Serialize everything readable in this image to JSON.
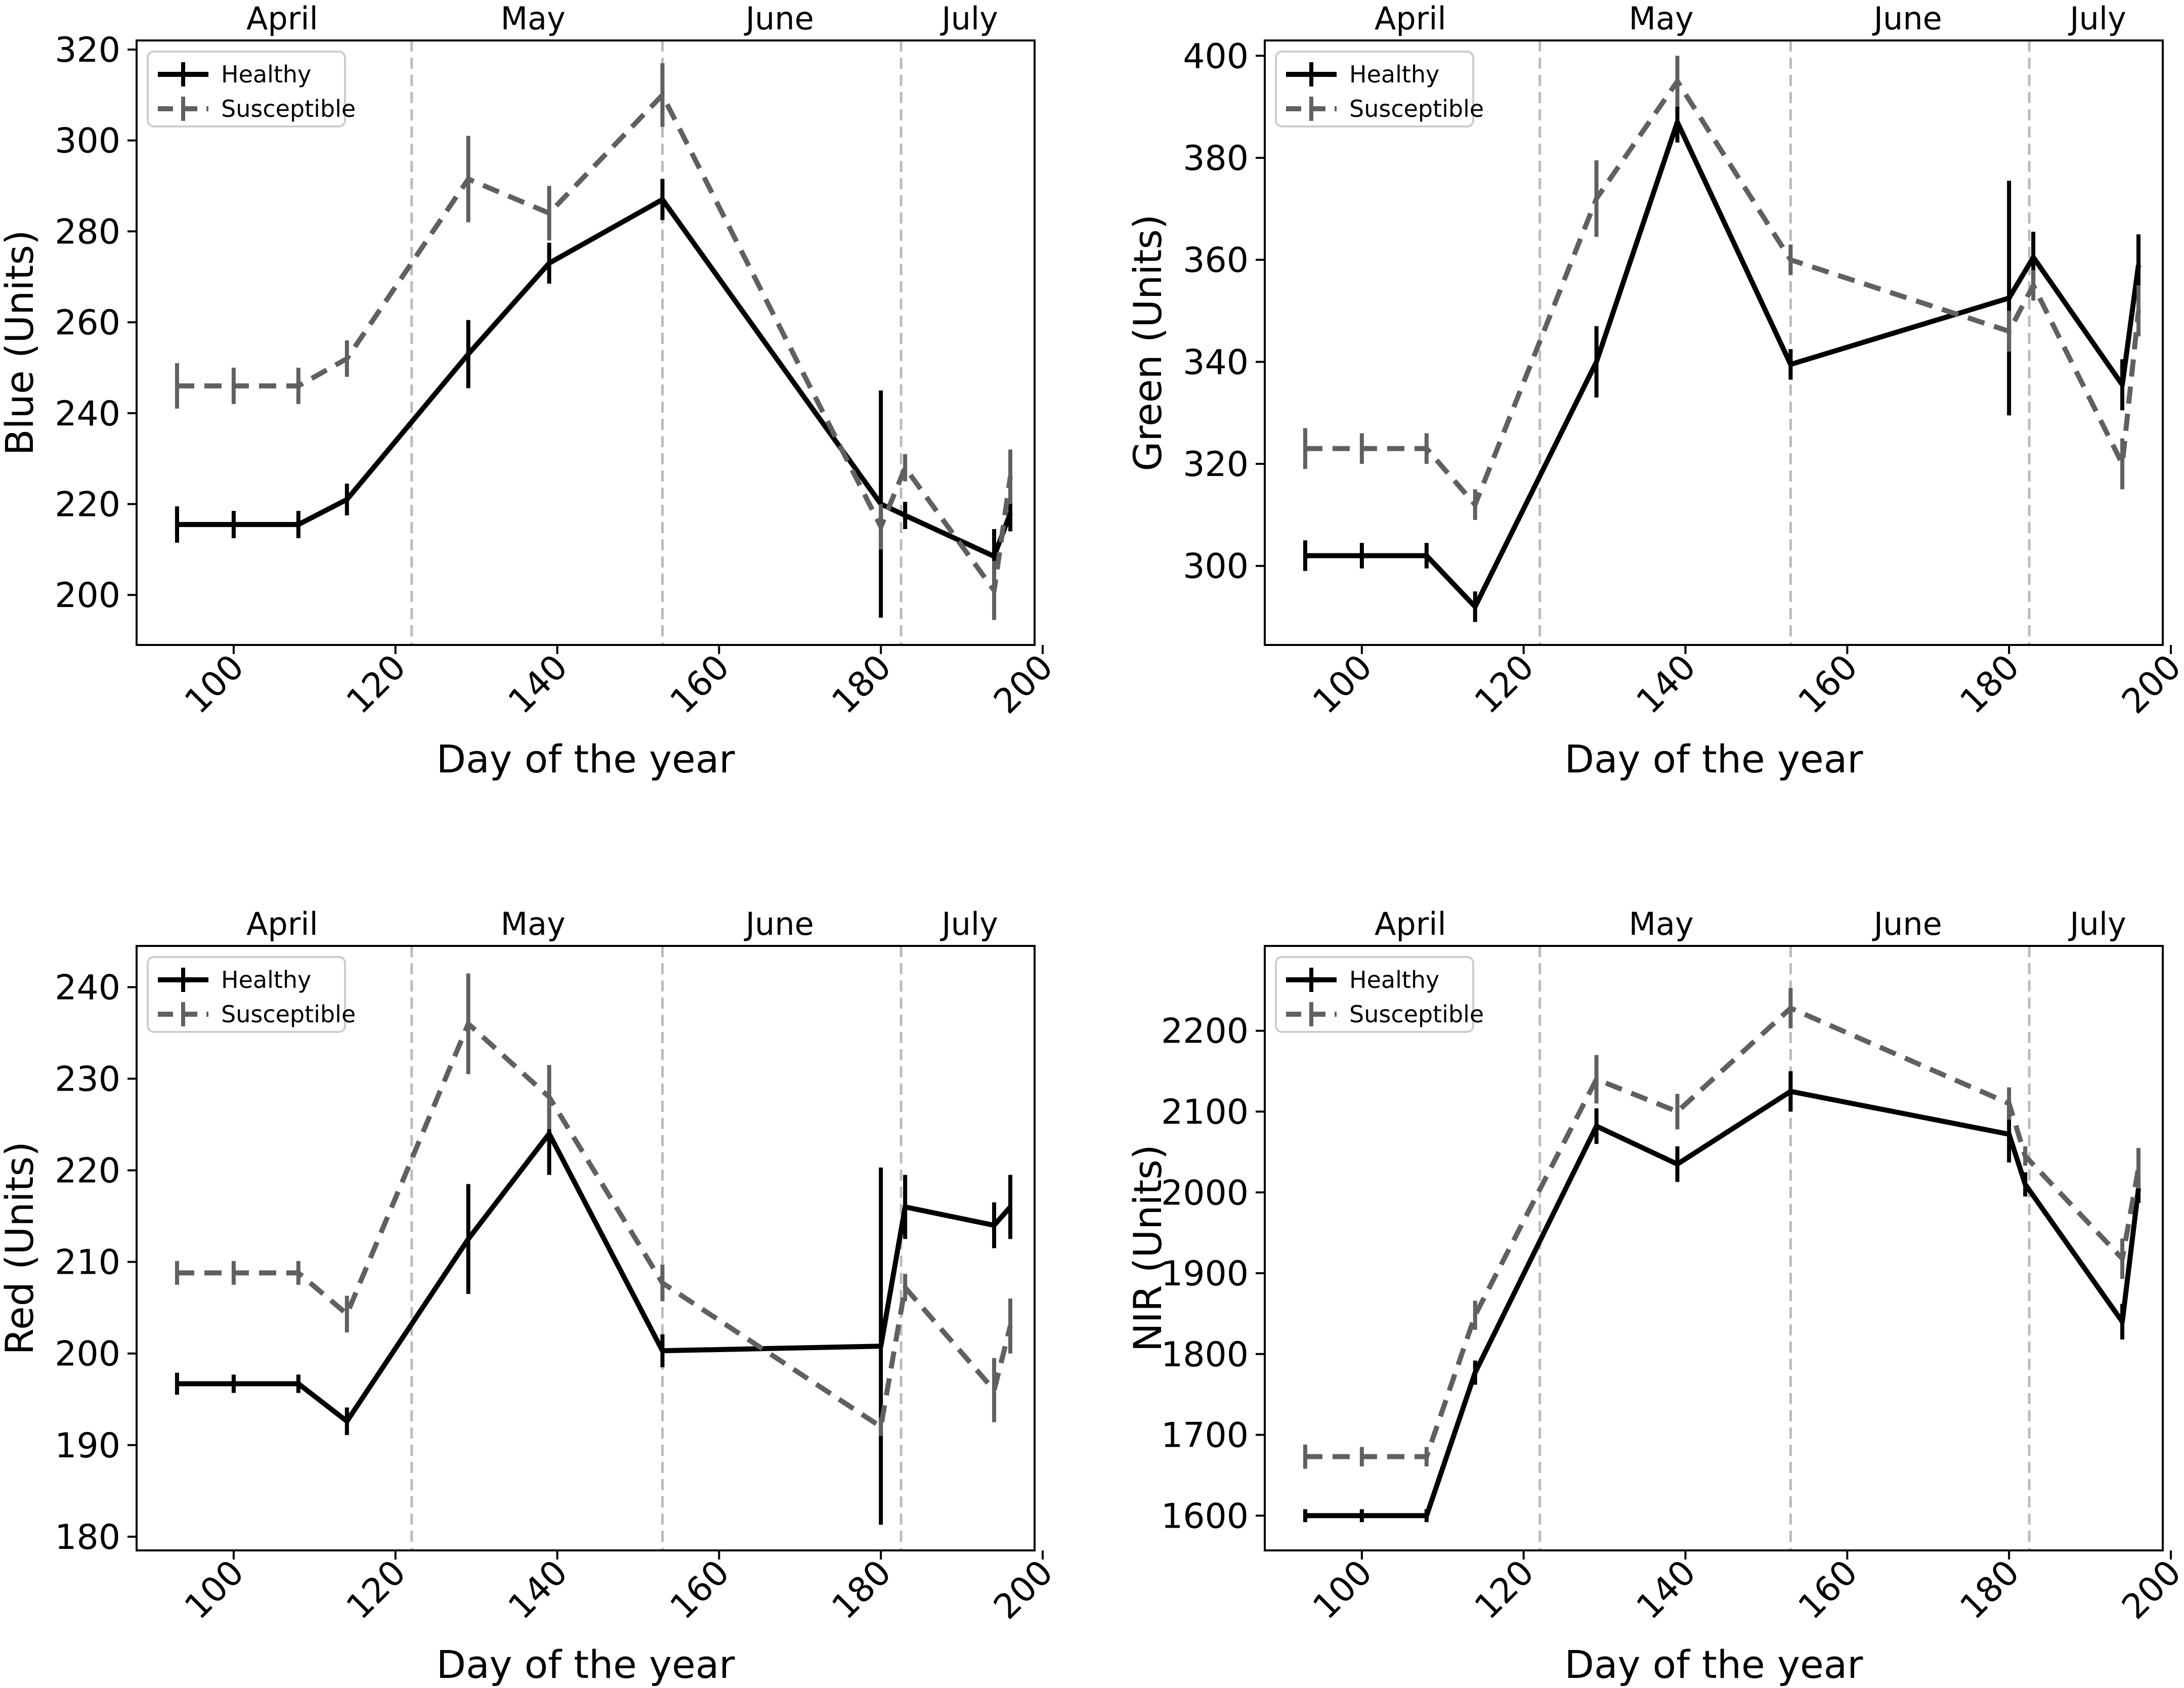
{
  "colors": {
    "healthy": "#000000",
    "susceptible": "#606060",
    "month_line": "#bbbbbb",
    "axes": "#000000",
    "background": "#ffffff"
  },
  "chart_data": [
    {
      "type": "line",
      "panel": "top-left",
      "title": "",
      "xlabel": "Day of the year",
      "ylabel": "Blue (Units)",
      "xlim": [
        88,
        199
      ],
      "ylim": [
        189,
        322
      ],
      "xticks": [
        100,
        120,
        140,
        160,
        180,
        200
      ],
      "yticks": [
        200,
        220,
        240,
        260,
        280,
        300,
        320
      ],
      "legend_position": "top-left",
      "month_labels": [
        {
          "label": "April",
          "x": 106
        },
        {
          "label": "May",
          "x": 137
        },
        {
          "label": "June",
          "x": 167.5
        },
        {
          "label": "July",
          "x": 191
        }
      ],
      "month_boundaries": [
        122,
        153,
        182.5
      ],
      "series": [
        {
          "name": "Healthy",
          "style": "solid",
          "x": [
            93,
            100,
            108,
            114,
            129,
            139,
            153,
            180,
            183,
            194,
            196
          ],
          "y": [
            215.5,
            215.5,
            215.5,
            221,
            253,
            273,
            287,
            220,
            217.5,
            208.5,
            218
          ],
          "err": [
            4,
            3,
            3,
            3.5,
            7.5,
            4.5,
            4.5,
            25,
            3,
            6,
            4
          ]
        },
        {
          "name": "Susceptible",
          "style": "dashed",
          "x": [
            93,
            100,
            108,
            114,
            129,
            139,
            153,
            180,
            183,
            194,
            196
          ],
          "y": [
            246,
            246,
            246,
            252,
            291.5,
            284,
            310,
            215,
            228,
            201,
            226
          ],
          "err": [
            5,
            4,
            4,
            4,
            9.5,
            6,
            7,
            5,
            3,
            6.5,
            6
          ]
        }
      ]
    },
    {
      "type": "line",
      "panel": "top-right",
      "title": "",
      "xlabel": "Day of the year",
      "ylabel": "Green (Units)",
      "xlim": [
        88,
        199
      ],
      "ylim": [
        284.5,
        403
      ],
      "xticks": [
        100,
        120,
        140,
        160,
        180,
        200
      ],
      "yticks": [
        300,
        320,
        340,
        360,
        380,
        400
      ],
      "legend_position": "top-left",
      "month_labels": [
        {
          "label": "April",
          "x": 106
        },
        {
          "label": "May",
          "x": 137
        },
        {
          "label": "June",
          "x": 167.5
        },
        {
          "label": "July",
          "x": 191
        }
      ],
      "month_boundaries": [
        122,
        153,
        182.5
      ],
      "series": [
        {
          "name": "Healthy",
          "style": "solid",
          "x": [
            93,
            100,
            108,
            114,
            129,
            139,
            153,
            180,
            183,
            194,
            196
          ],
          "y": [
            302,
            302,
            302,
            292,
            340,
            387,
            339.5,
            352.5,
            360.5,
            335.5,
            359
          ],
          "err": [
            3,
            2.5,
            2.5,
            3,
            7,
            4,
            3,
            23,
            5,
            5,
            6
          ]
        },
        {
          "name": "Susceptible",
          "style": "dashed",
          "x": [
            93,
            100,
            108,
            114,
            129,
            139,
            153,
            180,
            183,
            194,
            196
          ],
          "y": [
            323,
            323,
            323,
            312,
            372,
            395,
            360,
            346,
            355,
            320,
            350
          ],
          "err": [
            4,
            3,
            3,
            3,
            7.5,
            5,
            3,
            4,
            3,
            5,
            5
          ]
        }
      ]
    },
    {
      "type": "line",
      "panel": "bottom-left",
      "title": "",
      "xlabel": "Day of the year",
      "ylabel": "Red (Units)",
      "xlim": [
        88,
        199
      ],
      "ylim": [
        178.5,
        244.5
      ],
      "xticks": [
        100,
        120,
        140,
        160,
        180,
        200
      ],
      "yticks": [
        180,
        190,
        200,
        210,
        220,
        230,
        240
      ],
      "legend_position": "top-left",
      "month_labels": [
        {
          "label": "April",
          "x": 106
        },
        {
          "label": "May",
          "x": 137
        },
        {
          "label": "June",
          "x": 167.5
        },
        {
          "label": "July",
          "x": 191
        }
      ],
      "month_boundaries": [
        122,
        153,
        182.5
      ],
      "series": [
        {
          "name": "Healthy",
          "style": "solid",
          "x": [
            93,
            100,
            108,
            114,
            129,
            139,
            153,
            180,
            183,
            194,
            196
          ],
          "y": [
            196.7,
            196.7,
            196.7,
            192.6,
            212.5,
            224,
            200.3,
            200.8,
            216,
            214,
            216
          ],
          "err": [
            1.2,
            1,
            1,
            1.5,
            6,
            4.5,
            1.8,
            19.5,
            3.5,
            2.5,
            3.5
          ]
        },
        {
          "name": "Susceptible",
          "style": "dashed",
          "x": [
            93,
            100,
            108,
            114,
            129,
            139,
            153,
            180,
            183,
            194,
            196
          ],
          "y": [
            208.8,
            208.8,
            208.8,
            204.3,
            236,
            228,
            207.7,
            192,
            207.2,
            196,
            203
          ],
          "err": [
            1.3,
            1.3,
            1.3,
            2,
            5.5,
            3.5,
            2,
            1,
            1.5,
            3.5,
            3
          ]
        }
      ]
    },
    {
      "type": "line",
      "panel": "bottom-right",
      "title": "",
      "xlabel": "Day of the year",
      "ylabel": "NIR (Units)",
      "xlim": [
        88,
        199
      ],
      "ylim": [
        1557,
        2305
      ],
      "xticks": [
        100,
        120,
        140,
        160,
        180,
        200
      ],
      "yticks": [
        1600,
        1700,
        1800,
        1900,
        2000,
        2100,
        2200
      ],
      "legend_position": "top-left",
      "month_labels": [
        {
          "label": "April",
          "x": 106
        },
        {
          "label": "May",
          "x": 137
        },
        {
          "label": "June",
          "x": 167.5
        },
        {
          "label": "July",
          "x": 191
        }
      ],
      "month_boundaries": [
        122,
        153,
        182.5
      ],
      "series": [
        {
          "name": "Healthy",
          "style": "solid",
          "x": [
            93,
            100,
            108,
            114,
            129,
            139,
            153,
            180,
            182,
            194,
            196
          ],
          "y": [
            1600,
            1600,
            1600,
            1777,
            2082,
            2035,
            2125,
            2072,
            2010,
            1840,
            2005
          ],
          "err": [
            8,
            8,
            8,
            15,
            22,
            22,
            25,
            35,
            15,
            22,
            18
          ]
        },
        {
          "name": "Susceptible",
          "style": "dashed",
          "x": [
            93,
            100,
            108,
            114,
            129,
            139,
            153,
            180,
            182,
            194,
            196
          ],
          "y": [
            1673,
            1673,
            1673,
            1848,
            2140,
            2100,
            2228,
            2110,
            2045,
            1918,
            2030
          ],
          "err": [
            15,
            12,
            12,
            18,
            30,
            22,
            25,
            20,
            12,
            25,
            25
          ]
        }
      ]
    }
  ]
}
